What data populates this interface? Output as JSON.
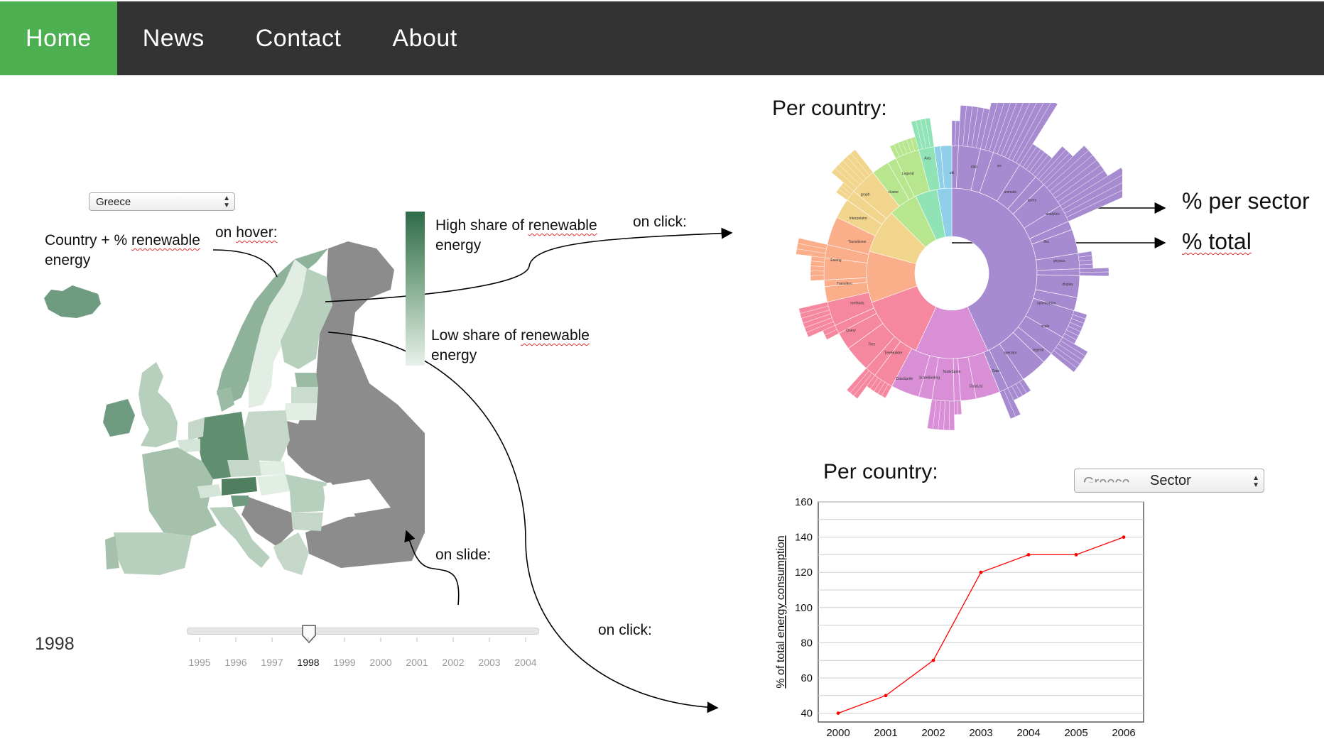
{
  "nav": {
    "items": [
      "Home",
      "News",
      "Contact",
      "About"
    ]
  },
  "country_select": {
    "value": "Greece"
  },
  "annotations": {
    "country_label_1": "Country + % ",
    "country_label_2": "renewable",
    "country_label_3": "energy",
    "on_hover_1": "on ",
    "on_hover_2": "hover:",
    "on_click_top": "on click:",
    "on_slide": "on slide:",
    "on_click_bottom": "on click:"
  },
  "legend": {
    "high_1": "High share of ",
    "high_2": "renewable",
    "high_3": "energy",
    "low_1": "Low share of ",
    "low_2": "renewable",
    "low_3": "energy",
    "colors": {
      "high": "#2f6b48",
      "low": "#e8f1ea"
    }
  },
  "year_display": "1998",
  "slider": {
    "years": [
      "1995",
      "1996",
      "1997",
      "1998",
      "1999",
      "2000",
      "2001",
      "2002",
      "2003",
      "2004"
    ],
    "selected": "1998"
  },
  "sunburst": {
    "title": "Per country:",
    "label_per_sector": "% per sector",
    "label_total": "% total",
    "segment_labels": [
      "util",
      "data",
      "vis",
      "animate",
      "query",
      "analytics",
      "flex",
      "physics",
      "display",
      "optimization",
      "scale",
      "legend",
      "operator",
      "Data",
      "DataList",
      "NodeSprite",
      "ScaleBinding",
      "DataSprite",
      "TreeBuilder",
      "Tree",
      "Query",
      "methods",
      "Transition",
      "Easing",
      "Transitioner",
      "Interpolator",
      "graph",
      "cluster",
      "Legend",
      "Axis"
    ]
  },
  "line_chart_section": {
    "title": "Per country:",
    "dropdown_overlap_text": "Greece",
    "dropdown_value": "Sector"
  },
  "chart_data": {
    "type": "line",
    "title": "",
    "xlabel": "",
    "ylabel": "% of total energy consumption",
    "x": [
      2000,
      2001,
      2002,
      2003,
      2004,
      2005,
      2006
    ],
    "series": [
      {
        "values": [
          40,
          50,
          70,
          120,
          130,
          130,
          140
        ],
        "color": "#ff0000"
      }
    ],
    "ylim": [
      35,
      160
    ],
    "yticks": [
      40,
      60,
      80,
      100,
      120,
      140,
      160
    ],
    "xticks": [
      "2000",
      "2001",
      "2002",
      "2003",
      "2004",
      "2005",
      "2006"
    ],
    "grid": true
  }
}
